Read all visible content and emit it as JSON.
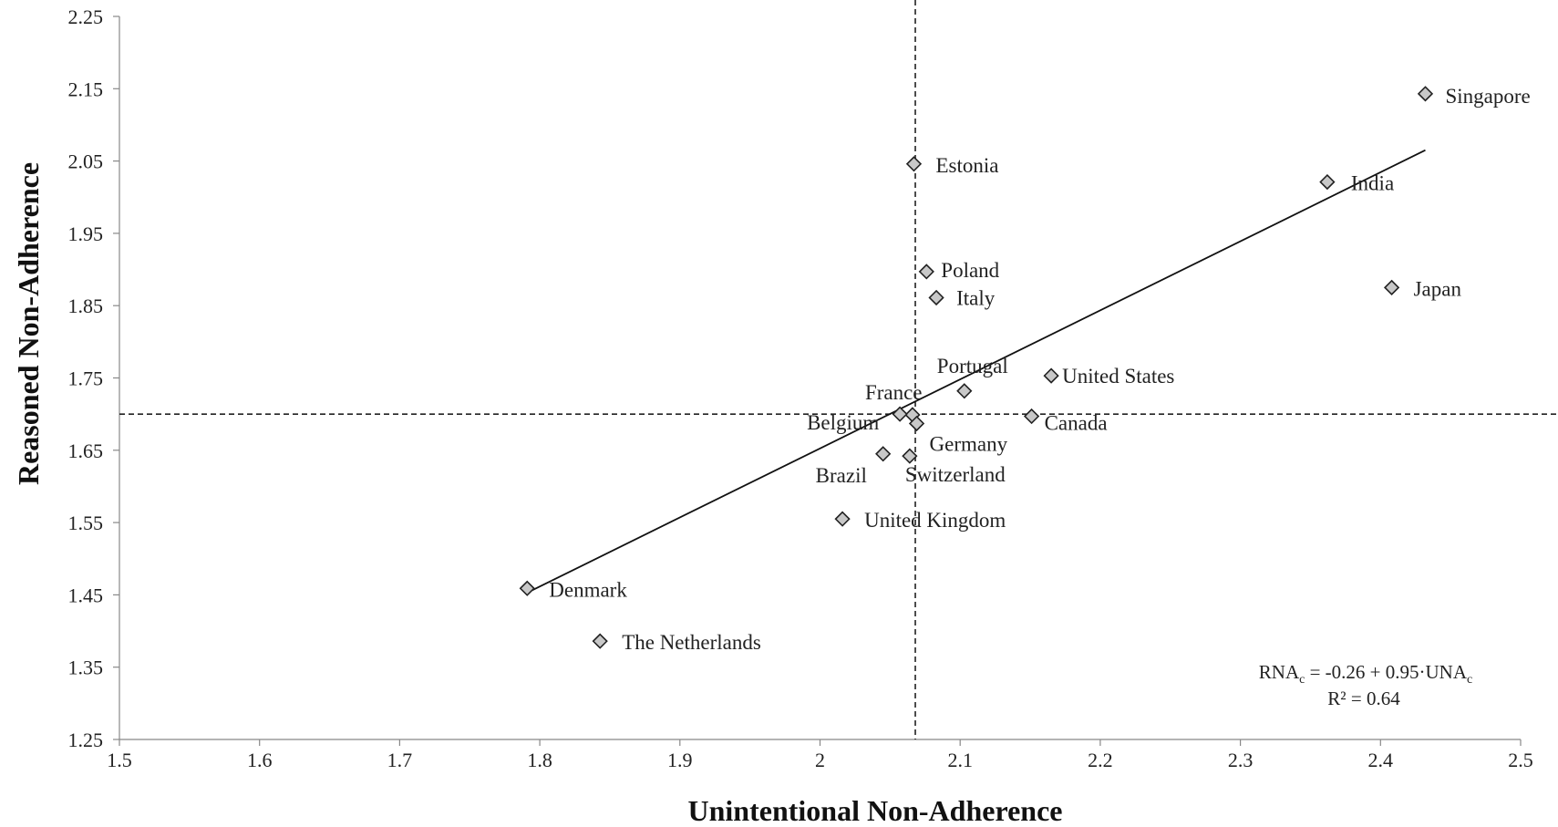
{
  "chart_data": {
    "type": "scatter",
    "xlabel": "Unintentional Non-Adherence",
    "ylabel": "Reasoned Non-Adherence",
    "xlim": [
      1.5,
      2.5
    ],
    "ylim": [
      1.25,
      2.25
    ],
    "x_ticks": [
      "1.5",
      "1.6",
      "1.7",
      "1.8",
      "1.9",
      "2",
      "2.1",
      "2.2",
      "2.3",
      "2.4",
      "2.5"
    ],
    "y_ticks": [
      "1.25",
      "1.35",
      "1.45",
      "1.55",
      "1.65",
      "1.75",
      "1.85",
      "1.95",
      "2.05",
      "2.15",
      "2.25"
    ],
    "grid": false,
    "marker": "diamond",
    "marker_color": "#c8c8c8",
    "points": [
      {
        "label": "Singapore",
        "x": 2.432,
        "y": 2.143
      },
      {
        "label": "Estonia",
        "x": 2.067,
        "y": 2.046
      },
      {
        "label": "India",
        "x": 2.362,
        "y": 2.021
      },
      {
        "label": "Poland",
        "x": 2.076,
        "y": 1.897
      },
      {
        "label": "Japan",
        "x": 2.408,
        "y": 1.875
      },
      {
        "label": "Italy",
        "x": 2.083,
        "y": 1.861
      },
      {
        "label": "United States",
        "x": 2.165,
        "y": 1.753
      },
      {
        "label": "Portugal",
        "x": 2.103,
        "y": 1.732
      },
      {
        "label": "France",
        "x": 2.066,
        "y": 1.699
      },
      {
        "label": "Canada",
        "x": 2.151,
        "y": 1.697
      },
      {
        "label": "Belgium",
        "x": 2.057,
        "y": 1.7
      },
      {
        "label": "Germany",
        "x": 2.069,
        "y": 1.687
      },
      {
        "label": "Brazil",
        "x": 2.045,
        "y": 1.645
      },
      {
        "label": "Switzerland",
        "x": 2.064,
        "y": 1.642
      },
      {
        "label": "United Kingdom",
        "x": 2.016,
        "y": 1.555
      },
      {
        "label": "Denmark",
        "x": 1.791,
        "y": 1.459
      },
      {
        "label": "The Netherlands",
        "x": 1.843,
        "y": 1.386
      }
    ],
    "trendline": {
      "x": [
        1.79,
        2.432
      ],
      "y": [
        1.452,
        2.065
      ]
    },
    "reference_lines": {
      "vertical_x": 2.068,
      "horizontal_y": 1.7
    },
    "equation": {
      "base1": "RNA",
      "sub1": "c",
      "rest": " = -0.26 + 0.95·UNA",
      "sub2": "c",
      "r2": "R² = 0.64"
    }
  }
}
